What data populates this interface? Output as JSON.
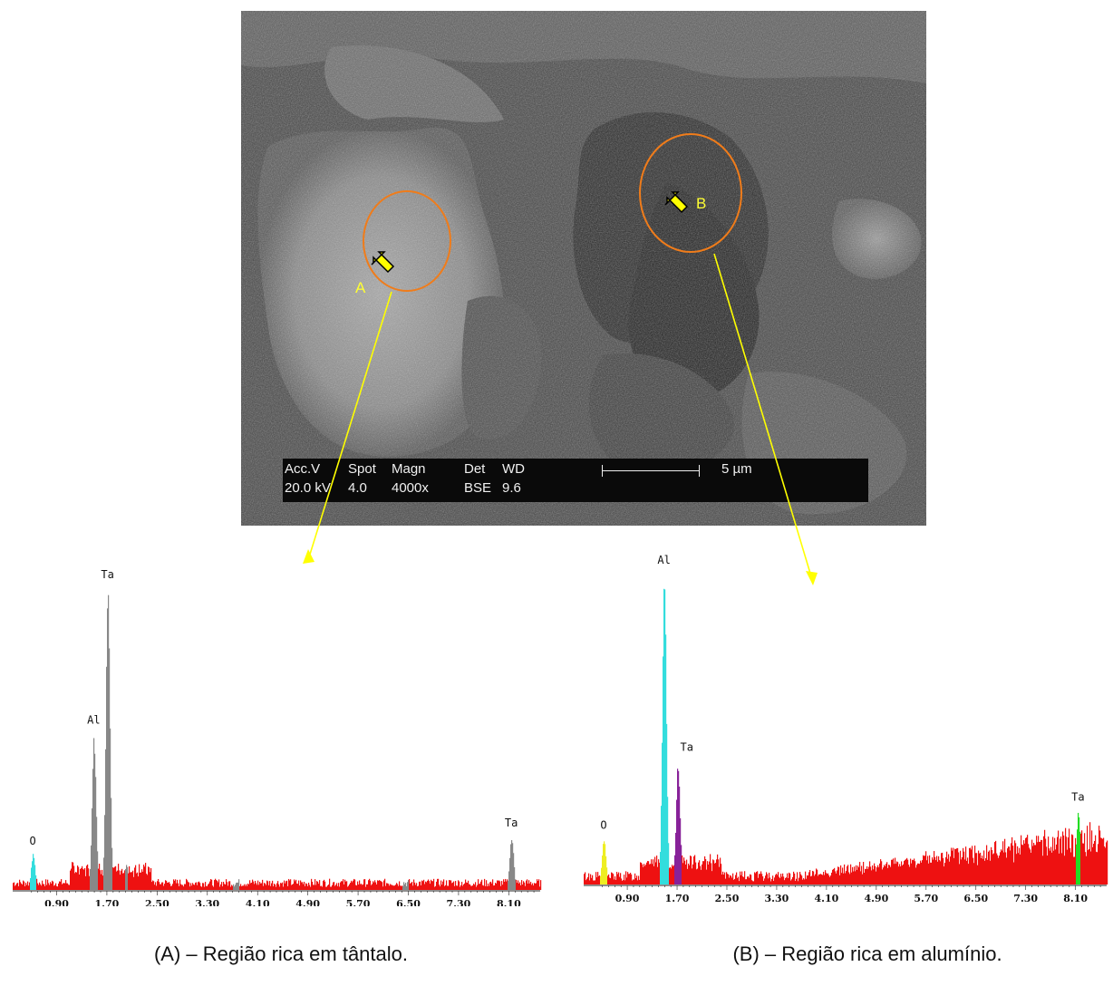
{
  "sem_image": {
    "databar": {
      "headers": [
        "Acc.V",
        "Spot",
        "Magn",
        "Det",
        "WD"
      ],
      "values": [
        "20.0 kV",
        "4.0",
        "4000x",
        "BSE",
        "9.6"
      ],
      "scale_label": "5 µm"
    },
    "markers": [
      {
        "label": "A",
        "ring_color": "#f07c1a"
      },
      {
        "label": "B",
        "ring_color": "#f07c1a"
      }
    ],
    "arrow_color": "#ffff00",
    "leader_color": "#ffff00"
  },
  "chart_data": [
    {
      "type": "area",
      "x_ticks": [
        "0.90",
        "1.70",
        "2.50",
        "3.30",
        "4.10",
        "4.90",
        "5.70",
        "6.50",
        "7.30",
        "8.10"
      ],
      "xlim": [
        0.2,
        8.6
      ],
      "ylim": [
        0,
        100
      ],
      "peaks": [
        {
          "label": "O",
          "x": 0.52,
          "height": 12,
          "color": "#33dddd"
        },
        {
          "label": "Al",
          "x": 1.49,
          "height": 52,
          "color": "#888888"
        },
        {
          "label": "Ta",
          "x": 1.71,
          "height": 100,
          "color": "#888888"
        },
        {
          "label": "Ta",
          "x": 8.14,
          "height": 18,
          "color": "#888888"
        }
      ],
      "background_color": "#ee1111",
      "caption": "(A) – Região rica em tântalo."
    },
    {
      "type": "area",
      "x_ticks": [
        "0.90",
        "1.70",
        "2.50",
        "3.30",
        "4.10",
        "4.90",
        "5.70",
        "6.50",
        "7.30",
        "8.10"
      ],
      "xlim": [
        0.2,
        8.6
      ],
      "ylim": [
        0,
        100
      ],
      "peaks": [
        {
          "label": "O",
          "x": 0.52,
          "height": 15,
          "color": "#eeee22"
        },
        {
          "label": "Al",
          "x": 1.49,
          "height": 100,
          "color": "#33dddd"
        },
        {
          "label": "Ta",
          "x": 1.71,
          "height": 40,
          "color": "#882299"
        },
        {
          "label": "Ta",
          "x": 8.14,
          "height": 24,
          "color": "#22dd22"
        }
      ],
      "background_color": "#ee1111",
      "caption": "(B) – Região rica em alumínio."
    }
  ]
}
